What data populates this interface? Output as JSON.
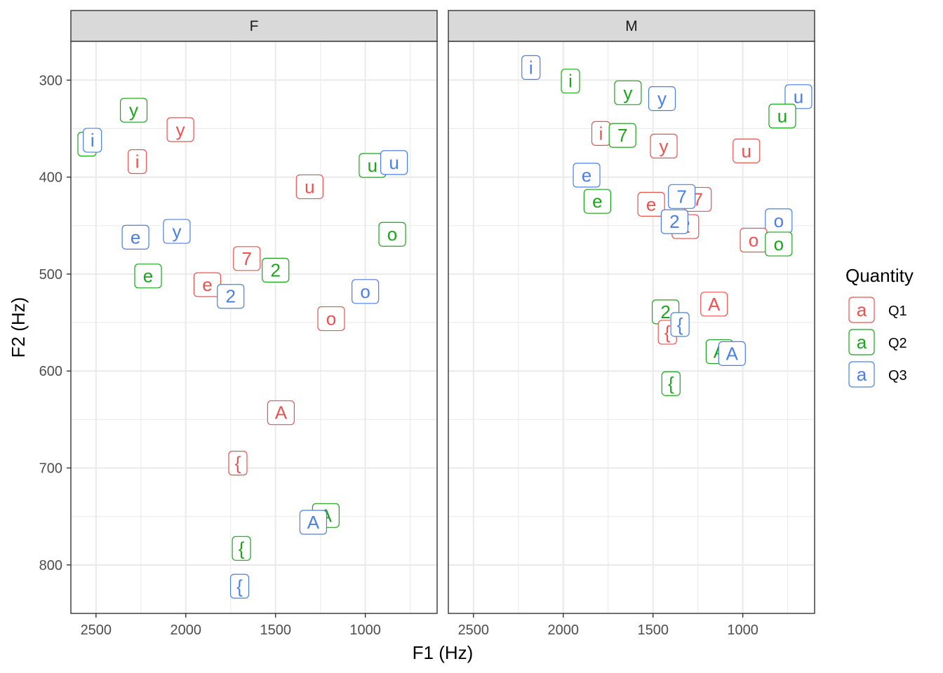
{
  "chart_data": {
    "type": "scatter",
    "xlabel": "F1 (Hz)",
    "ylabel": "F2 (Hz)",
    "x_reversed": true,
    "y_reversed": true,
    "xlim": [
      2640,
      600
    ],
    "ylim": [
      260,
      850
    ],
    "x_ticks": [
      2500,
      2000,
      1500,
      1000
    ],
    "y_ticks": [
      300,
      400,
      500,
      600,
      700,
      800
    ],
    "grid": true,
    "legend": {
      "title": "Quantity",
      "position": "right",
      "key_glyph": "a",
      "entries": [
        "Q1",
        "Q2",
        "Q3"
      ],
      "colors": [
        "#e8534f",
        "#1aa51a",
        "#4a7fe6"
      ]
    },
    "facets": [
      {
        "label": "F",
        "points": [
          {
            "label": "y",
            "x": 2290,
            "y": 331,
            "series": "Q2"
          },
          {
            "label": "y",
            "x": 2030,
            "y": 351,
            "series": "Q1"
          },
          {
            "label": "i",
            "x": 2550,
            "y": 366,
            "series": "Q2"
          },
          {
            "label": "i",
            "x": 2520,
            "y": 362,
            "series": "Q3"
          },
          {
            "label": "i",
            "x": 2270,
            "y": 384,
            "series": "Q1"
          },
          {
            "label": "u",
            "x": 960,
            "y": 388,
            "series": "Q2"
          },
          {
            "label": "u",
            "x": 840,
            "y": 385,
            "series": "Q3"
          },
          {
            "label": "u",
            "x": 1310,
            "y": 410,
            "series": "Q1"
          },
          {
            "label": "o",
            "x": 850,
            "y": 459,
            "series": "Q2"
          },
          {
            "label": "e",
            "x": 2280,
            "y": 462,
            "series": "Q3"
          },
          {
            "label": "y",
            "x": 2050,
            "y": 456,
            "series": "Q3"
          },
          {
            "label": "7",
            "x": 1660,
            "y": 484,
            "series": "Q1"
          },
          {
            "label": "2",
            "x": 1500,
            "y": 496,
            "series": "Q2"
          },
          {
            "label": "e",
            "x": 2210,
            "y": 502,
            "series": "Q2"
          },
          {
            "label": "e",
            "x": 1880,
            "y": 511,
            "series": "Q1"
          },
          {
            "label": "2",
            "x": 1750,
            "y": 523,
            "series": "Q3"
          },
          {
            "label": "o",
            "x": 1000,
            "y": 518,
            "series": "Q3"
          },
          {
            "label": "o",
            "x": 1190,
            "y": 546,
            "series": "Q1"
          },
          {
            "label": "A",
            "x": 1470,
            "y": 643,
            "series": "Q1"
          },
          {
            "label": "{",
            "x": 1710,
            "y": 695,
            "series": "Q1"
          },
          {
            "label": "A",
            "x": 1220,
            "y": 749,
            "series": "Q2"
          },
          {
            "label": "A",
            "x": 1290,
            "y": 756,
            "series": "Q3"
          },
          {
            "label": "{",
            "x": 1690,
            "y": 783,
            "series": "Q2"
          },
          {
            "label": "{",
            "x": 1700,
            "y": 822,
            "series": "Q3"
          }
        ]
      },
      {
        "label": "M",
        "points": [
          {
            "label": "i",
            "x": 2180,
            "y": 287,
            "series": "Q3"
          },
          {
            "label": "i",
            "x": 1960,
            "y": 301,
            "series": "Q2"
          },
          {
            "label": "y",
            "x": 1640,
            "y": 313,
            "series": "Q2"
          },
          {
            "label": "y",
            "x": 1450,
            "y": 319,
            "series": "Q3"
          },
          {
            "label": "u",
            "x": 690,
            "y": 317,
            "series": "Q3"
          },
          {
            "label": "u",
            "x": 780,
            "y": 337,
            "series": "Q2"
          },
          {
            "label": "i",
            "x": 1790,
            "y": 355,
            "series": "Q1"
          },
          {
            "label": "7",
            "x": 1670,
            "y": 357,
            "series": "Q2"
          },
          {
            "label": "y",
            "x": 1440,
            "y": 368,
            "series": "Q1"
          },
          {
            "label": "u",
            "x": 980,
            "y": 373,
            "series": "Q1"
          },
          {
            "label": "e",
            "x": 1870,
            "y": 398,
            "series": "Q3"
          },
          {
            "label": "e",
            "x": 1810,
            "y": 425,
            "series": "Q2"
          },
          {
            "label": "e",
            "x": 1510,
            "y": 428,
            "series": "Q1"
          },
          {
            "label": "7",
            "x": 1250,
            "y": 423,
            "series": "Q1"
          },
          {
            "label": "7",
            "x": 1340,
            "y": 420,
            "series": "Q3"
          },
          {
            "label": "2",
            "x": 1320,
            "y": 451,
            "series": "Q1"
          },
          {
            "label": "2",
            "x": 1380,
            "y": 446,
            "series": "Q3"
          },
          {
            "label": "o",
            "x": 800,
            "y": 445,
            "series": "Q3"
          },
          {
            "label": "o",
            "x": 940,
            "y": 465,
            "series": "Q1"
          },
          {
            "label": "o",
            "x": 800,
            "y": 469,
            "series": "Q2"
          },
          {
            "label": "A",
            "x": 1160,
            "y": 531,
            "series": "Q1"
          },
          {
            "label": "2",
            "x": 1430,
            "y": 539,
            "series": "Q2"
          },
          {
            "label": "{",
            "x": 1420,
            "y": 560,
            "series": "Q1"
          },
          {
            "label": "{",
            "x": 1350,
            "y": 552,
            "series": "Q3"
          },
          {
            "label": "A",
            "x": 1130,
            "y": 580,
            "series": "Q2"
          },
          {
            "label": "A",
            "x": 1060,
            "y": 582,
            "series": "Q3"
          },
          {
            "label": "{",
            "x": 1400,
            "y": 613,
            "series": "Q2"
          }
        ]
      }
    ]
  }
}
